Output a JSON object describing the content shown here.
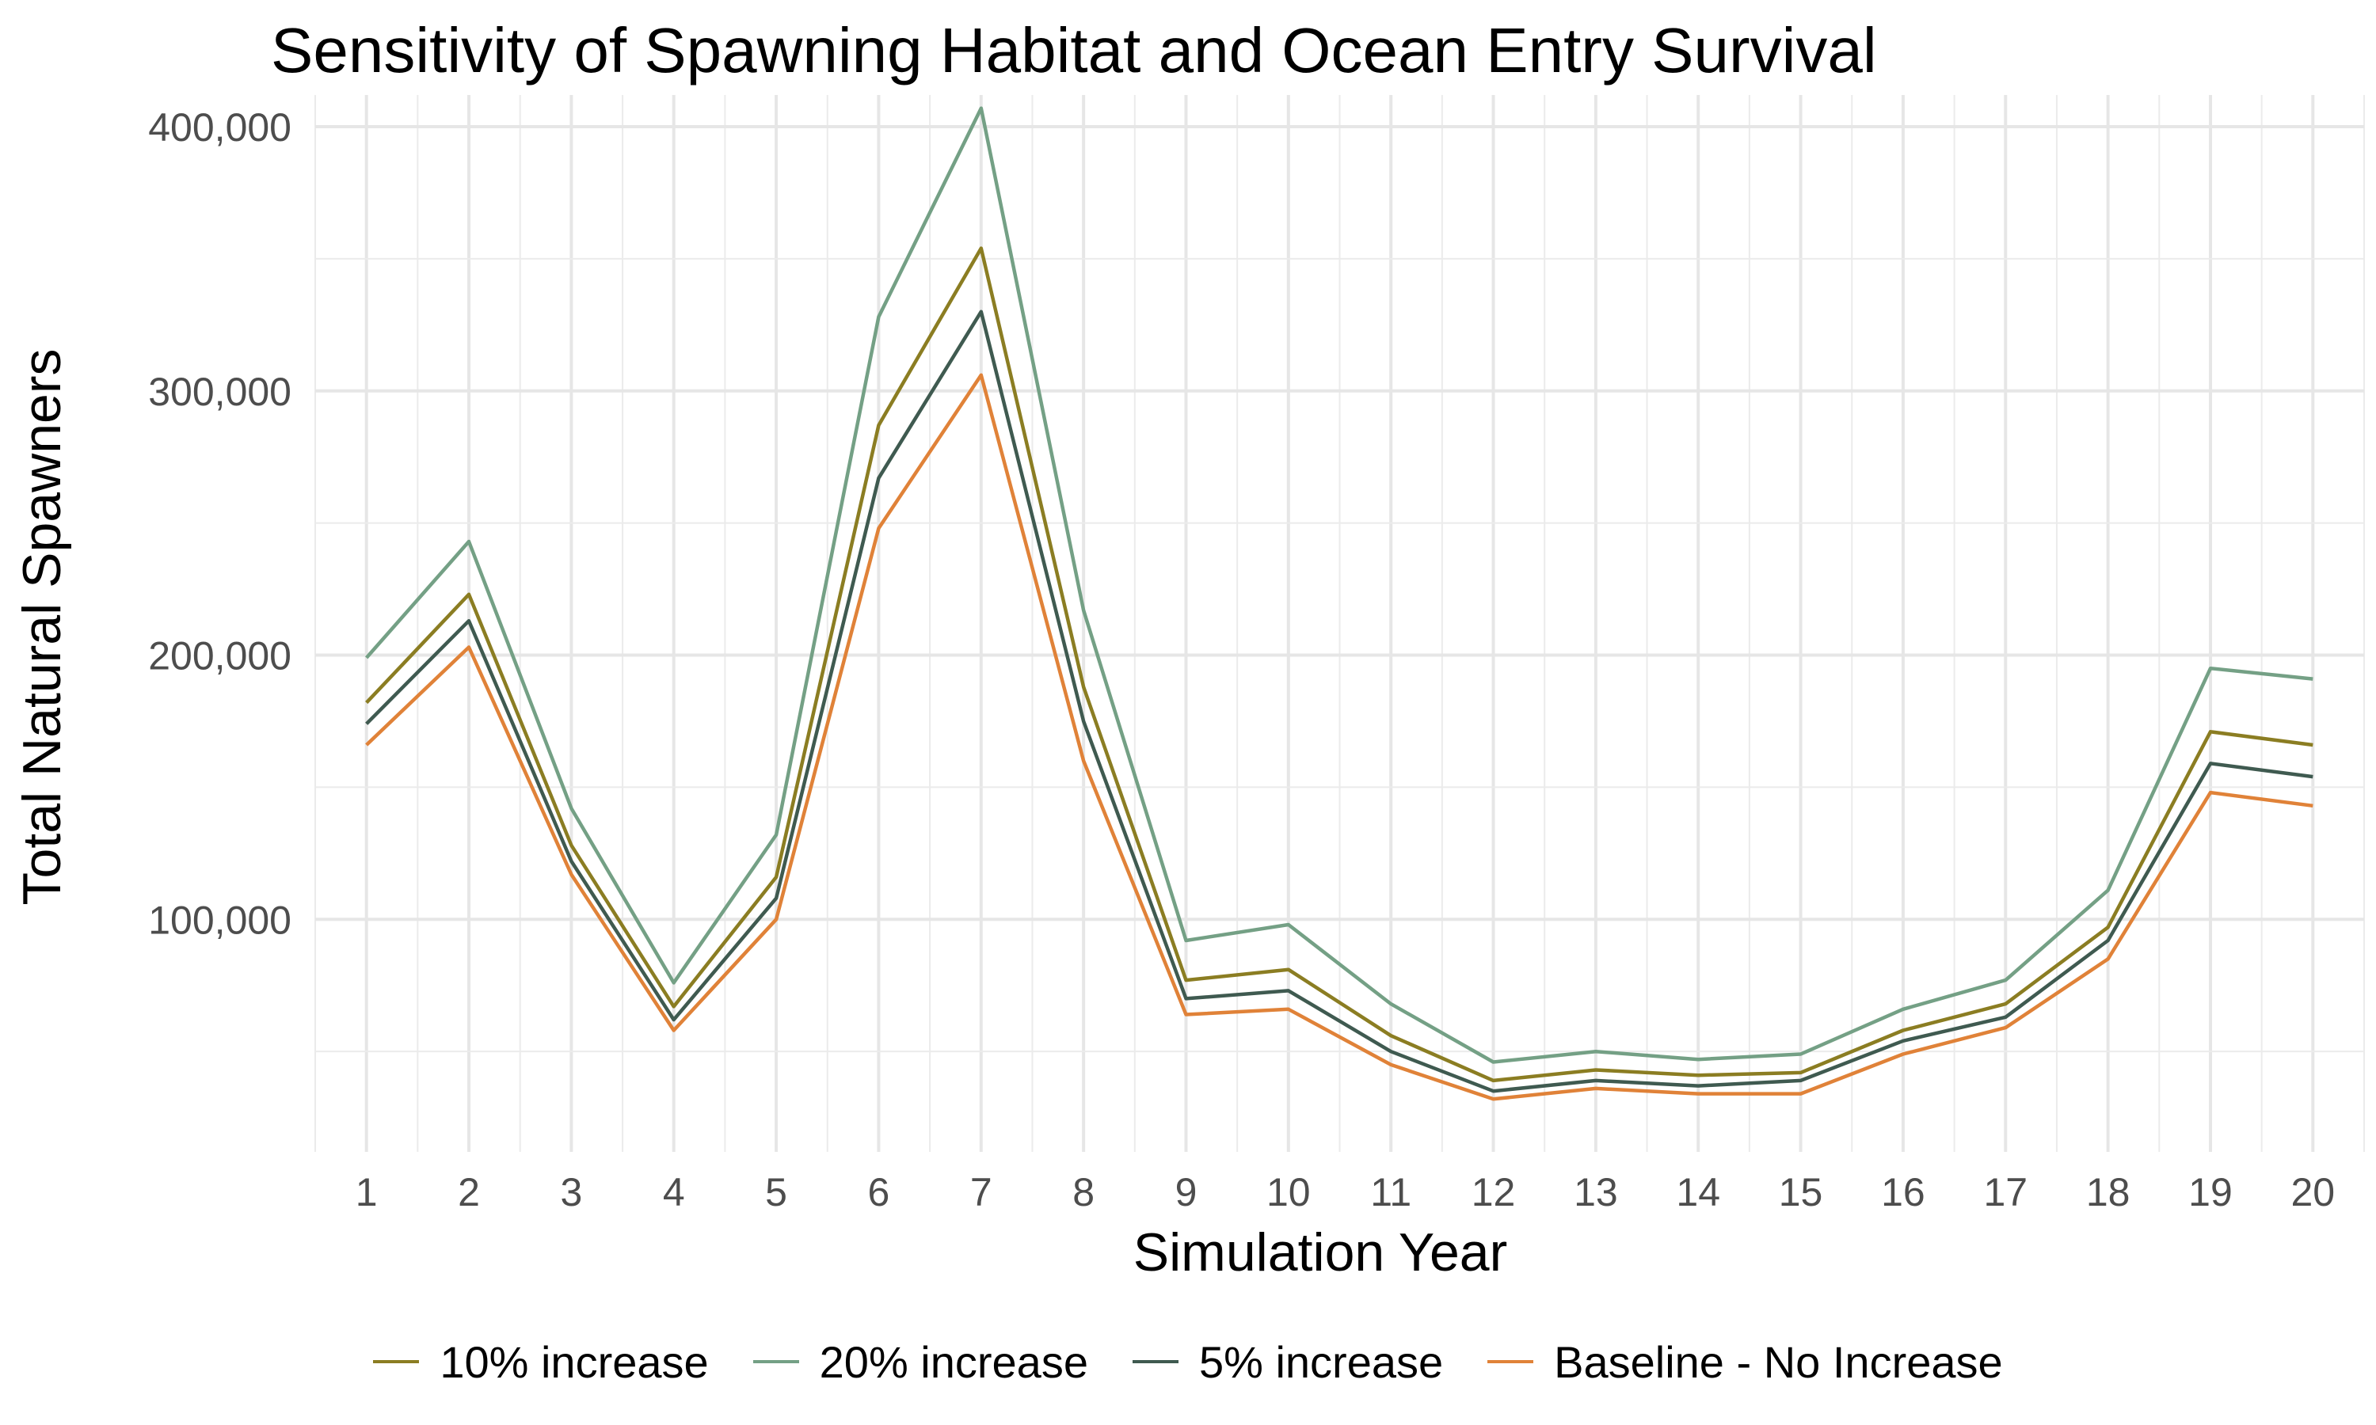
{
  "chart_data": {
    "type": "line",
    "title": "Sensitivity of Spawning Habitat and Ocean Entry Survival",
    "xlabel": "Simulation Year",
    "ylabel": "Total Natural Spawners",
    "x": [
      1,
      2,
      3,
      4,
      5,
      6,
      7,
      8,
      9,
      10,
      11,
      12,
      13,
      14,
      15,
      16,
      17,
      18,
      19,
      20
    ],
    "xlim": [
      0.5,
      20.5
    ],
    "ylim": [
      12000,
      412000
    ],
    "yticks": [
      100000,
      200000,
      300000,
      400000
    ],
    "ytick_labels": [
      "100,000",
      "200,000",
      "300,000",
      "400,000"
    ],
    "grid": true,
    "legend_position": "bottom",
    "series": [
      {
        "name": "10% increase",
        "color": "#8b7d22",
        "values": [
          182000,
          223000,
          128000,
          67000,
          116000,
          287000,
          354000,
          188000,
          77000,
          81000,
          56000,
          39000,
          43000,
          41000,
          42000,
          58000,
          68000,
          97000,
          171000,
          166000
        ]
      },
      {
        "name": "20% increase",
        "color": "#74a085",
        "values": [
          199000,
          243000,
          142000,
          76000,
          132000,
          328000,
          407000,
          217000,
          92000,
          98000,
          68000,
          46000,
          50000,
          47000,
          49000,
          66000,
          77000,
          111000,
          195000,
          191000
        ]
      },
      {
        "name": "5% increase",
        "color": "#3f5a50",
        "values": [
          174000,
          213000,
          122000,
          62000,
          108000,
          267000,
          330000,
          175000,
          70000,
          73000,
          50000,
          35000,
          39000,
          37000,
          39000,
          54000,
          63000,
          92000,
          159000,
          154000
        ]
      },
      {
        "name": "Baseline - No Increase",
        "color": "#e08238",
        "values": [
          166000,
          203000,
          117000,
          58000,
          100000,
          248000,
          306000,
          160000,
          64000,
          66000,
          45000,
          32000,
          36000,
          34000,
          34000,
          49000,
          59000,
          85000,
          148000,
          143000
        ]
      }
    ]
  }
}
